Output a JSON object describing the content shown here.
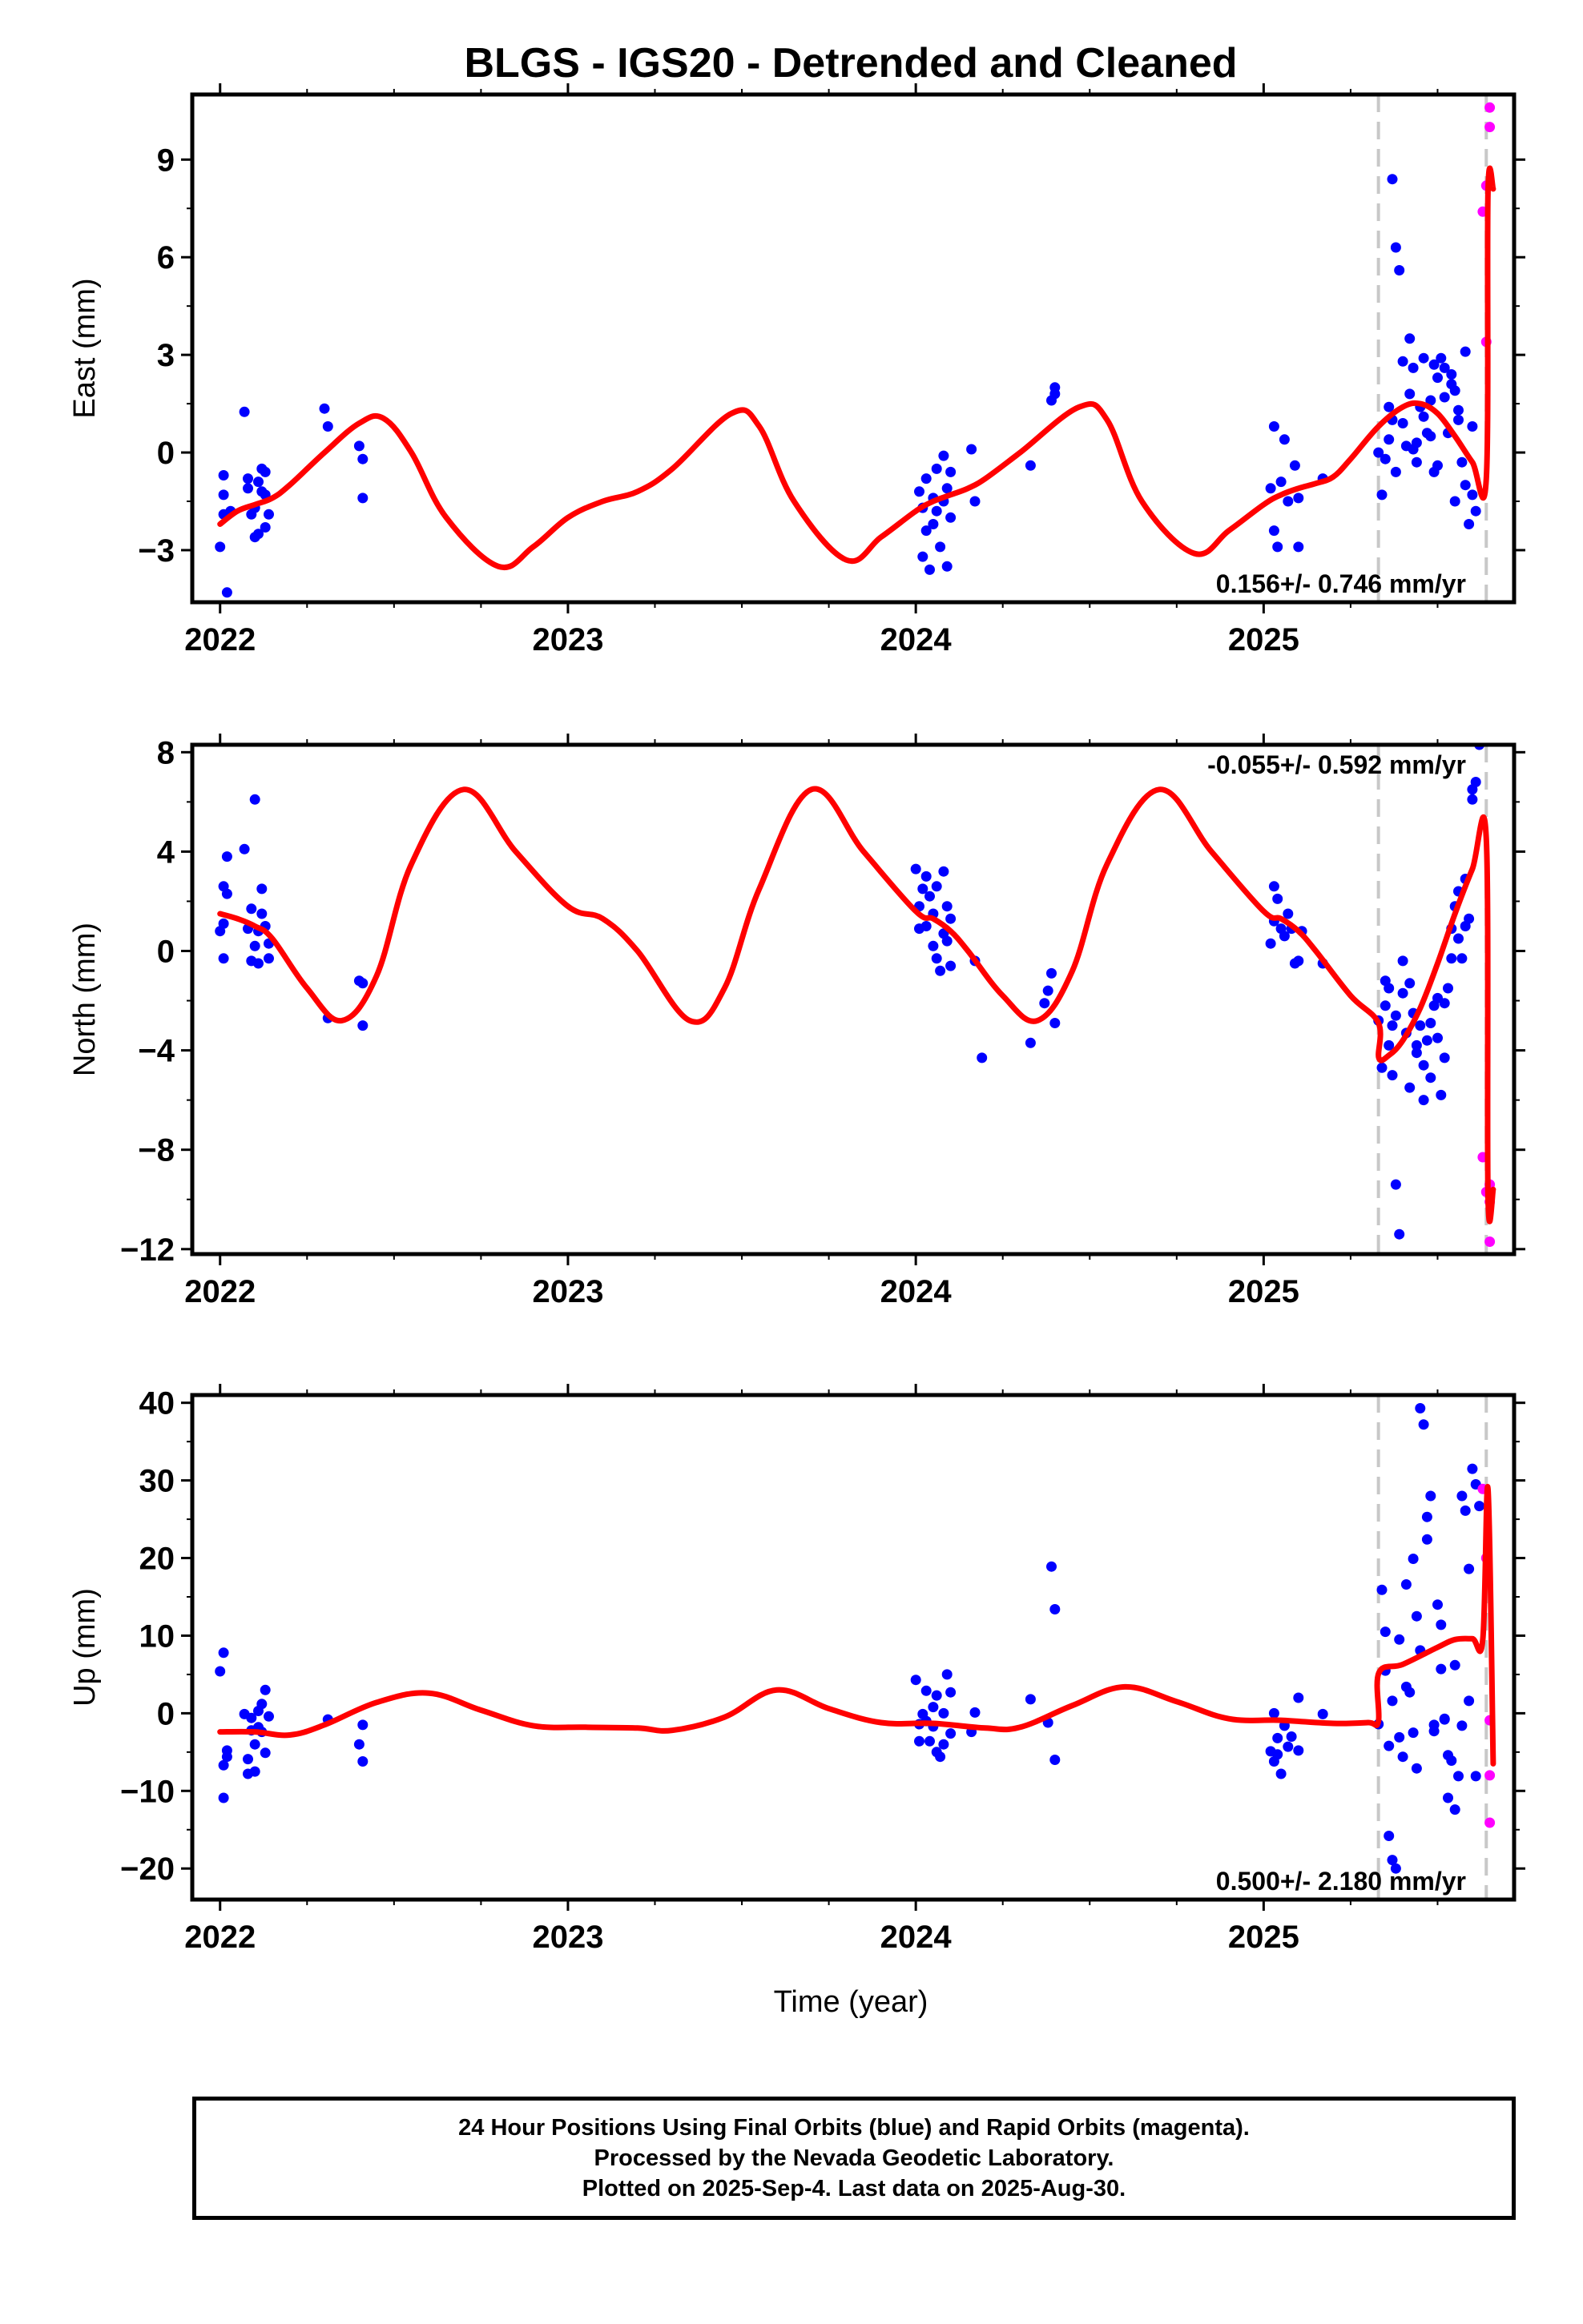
{
  "title": "BLGS - IGS20 - Detrended and Cleaned",
  "xlabel": "Time (year)",
  "footer": [
    "24 Hour Positions Using Final Orbits (blue) and Rapid Orbits (magenta).",
    "Processed by the Nevada Geodetic Laboratory.",
    "Plotted on 2025-Sep-4. Last data on 2025-Aug-30."
  ],
  "colors": {
    "final": "#0000ff",
    "rapid": "#ff00ff",
    "model": "#ff0000",
    "event_line": "#c8c8c8"
  },
  "chart_data": [
    {
      "type": "scatter",
      "component": "east",
      "ylabel": "East (mm)",
      "rate_text": "0.156+/- 0.746 mm/yr",
      "xlim": [
        2021.92,
        2025.72
      ],
      "ylim": [
        -4.6,
        11
      ],
      "yticks": [
        -3,
        0,
        3,
        6,
        9
      ],
      "xticks": [
        2022,
        2023,
        2024,
        2025
      ],
      "event_lines": [
        2025.33,
        2025.64
      ],
      "final": {
        "x": [
          2022.0,
          2022.01,
          2022.01,
          2022.01,
          2022.02,
          2022.03,
          2022.07,
          2022.08,
          2022.08,
          2022.09,
          2022.1,
          2022.1,
          2022.11,
          2022.11,
          2022.12,
          2022.12,
          2022.13,
          2022.13,
          2022.13,
          2022.14,
          2022.3,
          2022.31,
          2022.4,
          2022.41,
          2022.41,
          2024.01,
          2024.02,
          2024.02,
          2024.03,
          2024.03,
          2024.04,
          2024.05,
          2024.05,
          2024.06,
          2024.06,
          2024.07,
          2024.08,
          2024.08,
          2024.09,
          2024.09,
          2024.1,
          2024.1,
          2024.16,
          2024.17,
          2024.33,
          2024.39,
          2024.4,
          2024.4,
          2025.02,
          2025.03,
          2025.03,
          2025.04,
          2025.05,
          2025.06,
          2025.07,
          2025.09,
          2025.1,
          2025.1,
          2025.17,
          2025.33,
          2025.34,
          2025.35,
          2025.36,
          2025.37,
          2025.38,
          2025.39,
          2025.4,
          2025.41,
          2025.42,
          2025.43,
          2025.44,
          2025.45,
          2025.46,
          2025.47,
          2025.48,
          2025.49,
          2025.5,
          2025.51,
          2025.52,
          2025.53,
          2025.54,
          2025.55,
          2025.56,
          2025.57,
          2025.58,
          2025.59,
          2025.6,
          2025.61,
          2025.36,
          2025.38,
          2025.4,
          2025.42,
          2025.44,
          2025.46,
          2025.48,
          2025.5,
          2025.52,
          2025.54,
          2025.56,
          2025.58,
          2025.6,
          2025.37,
          2025.43,
          2025.49,
          2025.55
        ],
        "y": [
          -2.9,
          -1.9,
          -1.3,
          -0.7,
          -4.3,
          -1.8,
          1.25,
          -1.1,
          -0.8,
          -1.9,
          -2.6,
          -1.7,
          -2.5,
          -0.9,
          -1.2,
          -0.5,
          -2.3,
          -1.3,
          -0.6,
          -1.9,
          1.35,
          0.8,
          0.2,
          -0.2,
          -1.4,
          -1.2,
          -3.2,
          -1.7,
          -0.8,
          -2.4,
          -3.6,
          -2.2,
          -1.4,
          -0.5,
          -1.8,
          -2.9,
          -0.1,
          -1.5,
          -3.5,
          -1.1,
          -2.0,
          -0.6,
          0.1,
          -1.5,
          -0.4,
          1.6,
          2.0,
          1.8,
          -1.1,
          -2.4,
          0.8,
          -2.9,
          -0.9,
          0.4,
          -1.5,
          -0.4,
          -2.9,
          -1.4,
          -0.8,
          0.0,
          -1.3,
          -0.2,
          1.4,
          8.4,
          6.3,
          5.6,
          2.8,
          0.2,
          3.5,
          2.6,
          0.3,
          1.4,
          2.9,
          0.6,
          1.6,
          2.7,
          2.3,
          2.9,
          2.6,
          0.6,
          2.1,
          1.9,
          1.3,
          -0.3,
          -1.0,
          -2.2,
          -1.3,
          -1.8,
          0.4,
          -0.6,
          0.9,
          1.8,
          -0.3,
          1.1,
          0.5,
          -0.4,
          1.7,
          2.4,
          1.0,
          3.1,
          0.8,
          1.0,
          0.1,
          -0.6,
          -1.5
        ],
        "color": "#0000ff"
      },
      "rapid": {
        "x": [
          2025.63,
          2025.64,
          2025.64,
          2025.65,
          2025.65
        ],
        "y": [
          7.4,
          3.4,
          8.2,
          10.6,
          10.0
        ],
        "color": "#ff00ff"
      },
      "model_anchor": {
        "x": [
          2022.0,
          2022.05,
          2022.1,
          2022.15,
          2022.2,
          2022.3,
          2022.4,
          2022.47,
          2022.55,
          2022.65,
          2022.8,
          2022.9,
          2023.0,
          2023.1,
          2023.2,
          2023.3,
          2023.47,
          2023.55,
          2023.65,
          2023.8,
          2023.9,
          2024.0,
          2024.05,
          2024.1,
          2024.15,
          2024.2,
          2024.3,
          2024.47,
          2024.55,
          2024.65,
          2024.8,
          2024.9,
          2025.0,
          2025.05,
          2025.1,
          2025.15,
          2025.2,
          2025.25,
          2025.33,
          2025.4,
          2025.45,
          2025.5,
          2025.55,
          2025.6,
          2025.64,
          2025.645,
          2025.66
        ],
        "y": [
          -2.2,
          -1.8,
          -1.6,
          -1.4,
          -1.0,
          0.0,
          0.9,
          1.05,
          0.0,
          -2.0,
          -3.5,
          -2.9,
          -2.0,
          -1.5,
          -1.2,
          -0.5,
          1.2,
          0.8,
          -1.5,
          -3.3,
          -2.6,
          -1.8,
          -1.5,
          -1.3,
          -1.1,
          -0.8,
          0.0,
          1.4,
          1.0,
          -1.5,
          -3.1,
          -2.4,
          -1.6,
          -1.3,
          -1.1,
          -0.95,
          -0.75,
          -0.2,
          0.8,
          1.4,
          1.5,
          1.2,
          0.5,
          -0.3,
          -0.8,
          8.0,
          8.1
        ],
        "color": "#ff0000"
      }
    },
    {
      "type": "scatter",
      "component": "north",
      "ylabel": "North (mm)",
      "rate_text": "-0.055+/- 0.592 mm/yr",
      "xlim": [
        2021.92,
        2025.72
      ],
      "ylim": [
        -12.2,
        8.3
      ],
      "yticks": [
        -12,
        -8,
        -4,
        0,
        4,
        8
      ],
      "xticks": [
        2022,
        2023,
        2024,
        2025
      ],
      "event_lines": [
        2025.33,
        2025.64
      ],
      "final": {
        "x": [
          2022.0,
          2022.01,
          2022.01,
          2022.01,
          2022.02,
          2022.02,
          2022.07,
          2022.08,
          2022.09,
          2022.09,
          2022.1,
          2022.1,
          2022.11,
          2022.11,
          2022.12,
          2022.12,
          2022.13,
          2022.14,
          2022.14,
          2022.31,
          2022.4,
          2022.41,
          2022.41,
          2024.0,
          2024.01,
          2024.01,
          2024.02,
          2024.03,
          2024.03,
          2024.04,
          2024.05,
          2024.05,
          2024.06,
          2024.06,
          2024.07,
          2024.08,
          2024.08,
          2024.09,
          2024.09,
          2024.1,
          2024.1,
          2024.17,
          2024.19,
          2024.33,
          2024.37,
          2024.38,
          2024.39,
          2024.4,
          2025.02,
          2025.03,
          2025.03,
          2025.04,
          2025.05,
          2025.06,
          2025.07,
          2025.08,
          2025.09,
          2025.1,
          2025.11,
          2025.17,
          2025.33,
          2025.34,
          2025.35,
          2025.36,
          2025.37,
          2025.38,
          2025.39,
          2025.4,
          2025.41,
          2025.42,
          2025.43,
          2025.44,
          2025.45,
          2025.46,
          2025.47,
          2025.48,
          2025.49,
          2025.5,
          2025.51,
          2025.52,
          2025.53,
          2025.54,
          2025.55,
          2025.56,
          2025.57,
          2025.58,
          2025.59,
          2025.6,
          2025.61,
          2025.35,
          2025.36,
          2025.37,
          2025.38,
          2025.4,
          2025.42,
          2025.44,
          2025.46,
          2025.48,
          2025.5,
          2025.52,
          2025.54,
          2025.56,
          2025.58,
          2025.6,
          2025.62
        ],
        "y": [
          0.8,
          -0.3,
          1.1,
          2.6,
          3.8,
          2.3,
          4.1,
          0.9,
          -0.4,
          1.7,
          6.1,
          0.2,
          -0.5,
          0.8,
          2.5,
          1.5,
          1.0,
          0.3,
          -0.3,
          -2.7,
          -1.2,
          -1.3,
          -3.0,
          3.3,
          1.8,
          0.9,
          2.5,
          3.0,
          1.0,
          2.2,
          1.5,
          0.2,
          2.6,
          -0.3,
          -0.8,
          3.2,
          0.7,
          1.8,
          0.4,
          1.3,
          -0.6,
          -0.4,
          -4.3,
          -3.7,
          -2.1,
          -1.6,
          -0.9,
          -2.9,
          0.3,
          1.2,
          2.6,
          2.1,
          0.9,
          0.6,
          1.5,
          0.9,
          -0.5,
          -0.4,
          0.8,
          -0.5,
          -2.8,
          -4.7,
          -2.2,
          -3.8,
          -5.0,
          -9.4,
          -11.4,
          -1.7,
          -3.3,
          -5.5,
          -2.5,
          -4.1,
          -3.0,
          -6.0,
          -3.6,
          -5.1,
          -2.2,
          -3.5,
          -5.8,
          -4.3,
          -1.5,
          -0.3,
          1.8,
          0.5,
          -0.3,
          2.9,
          1.3,
          6.1,
          6.8,
          -1.2,
          -1.5,
          -3.0,
          -2.6,
          -0.4,
          -1.3,
          -3.8,
          -4.6,
          -2.9,
          -1.9,
          -2.1,
          0.9,
          2.4,
          1.0,
          6.5,
          8.3
        ],
        "color": "#0000ff"
      },
      "rapid": {
        "x": [
          2025.63,
          2025.64,
          2025.65,
          2025.65,
          2025.65
        ],
        "y": [
          -8.3,
          -9.7,
          -9.4,
          -10.1,
          -11.7
        ],
        "color": "#ff00ff"
      },
      "model_anchor": {
        "x": [
          2022.0,
          2022.05,
          2022.1,
          2022.15,
          2022.25,
          2022.35,
          2022.45,
          2022.55,
          2022.7,
          2022.85,
          2023.0,
          2023.1,
          2023.2,
          2023.35,
          2023.45,
          2023.55,
          2023.7,
          2023.85,
          2024.0,
          2024.05,
          2024.1,
          2024.15,
          2024.25,
          2024.35,
          2024.45,
          2024.55,
          2024.7,
          2024.85,
          2025.0,
          2025.05,
          2025.1,
          2025.15,
          2025.25,
          2025.33,
          2025.331,
          2025.36,
          2025.4,
          2025.45,
          2025.5,
          2025.55,
          2025.6,
          2025.64,
          2025.645,
          2025.66
        ],
        "y": [
          1.5,
          1.3,
          1.0,
          0.5,
          -1.5,
          -2.8,
          -1.0,
          3.5,
          6.5,
          4.0,
          1.8,
          1.3,
          0.0,
          -2.8,
          -1.5,
          2.5,
          6.5,
          4.0,
          1.6,
          1.3,
          0.8,
          0.0,
          -1.8,
          -2.8,
          -0.8,
          3.5,
          6.5,
          4.0,
          1.6,
          1.3,
          0.8,
          0.0,
          -1.8,
          -2.9,
          -4.3,
          -4.2,
          -3.6,
          -2.3,
          -0.5,
          1.5,
          3.3,
          4.5,
          -9.8,
          -9.6
        ],
        "color": "#ff0000"
      }
    },
    {
      "type": "scatter",
      "component": "up",
      "ylabel": "Up (mm)",
      "rate_text": "0.500+/- 2.180 mm/yr",
      "xlim": [
        2021.92,
        2025.72
      ],
      "ylim": [
        -24,
        41
      ],
      "yticks": [
        -20,
        -10,
        0,
        10,
        20,
        30,
        40
      ],
      "xticks": [
        2022,
        2023,
        2024,
        2025
      ],
      "xlabel": "Time (year)",
      "event_lines": [
        2025.33,
        2025.64
      ],
      "final": {
        "x": [
          2022.0,
          2022.01,
          2022.01,
          2022.01,
          2022.02,
          2022.02,
          2022.07,
          2022.08,
          2022.08,
          2022.09,
          2022.09,
          2022.1,
          2022.1,
          2022.11,
          2022.11,
          2022.12,
          2022.12,
          2022.13,
          2022.13,
          2022.14,
          2022.31,
          2022.4,
          2022.41,
          2022.41,
          2024.0,
          2024.01,
          2024.01,
          2024.02,
          2024.03,
          2024.03,
          2024.04,
          2024.05,
          2024.05,
          2024.06,
          2024.06,
          2024.07,
          2024.08,
          2024.08,
          2024.09,
          2024.1,
          2024.1,
          2024.16,
          2024.17,
          2024.33,
          2024.38,
          2024.39,
          2024.4,
          2024.4,
          2025.02,
          2025.03,
          2025.03,
          2025.04,
          2025.04,
          2025.05,
          2025.06,
          2025.07,
          2025.08,
          2025.1,
          2025.1,
          2025.17,
          2025.33,
          2025.34,
          2025.35,
          2025.36,
          2025.37,
          2025.38,
          2025.39,
          2025.4,
          2025.41,
          2025.42,
          2025.43,
          2025.44,
          2025.45,
          2025.46,
          2025.47,
          2025.48,
          2025.49,
          2025.5,
          2025.51,
          2025.52,
          2025.53,
          2025.54,
          2025.55,
          2025.56,
          2025.57,
          2025.58,
          2025.59,
          2025.6,
          2025.61,
          2025.35,
          2025.37,
          2025.39,
          2025.41,
          2025.43,
          2025.45,
          2025.47,
          2025.49,
          2025.51,
          2025.53,
          2025.55,
          2025.57,
          2025.59,
          2025.61,
          2025.62,
          2025.36,
          2025.44,
          2025.52
        ],
        "y": [
          5.4,
          7.8,
          -6.7,
          -10.9,
          -4.8,
          -5.6,
          -0.1,
          -5.9,
          -7.8,
          -2.2,
          -0.6,
          -7.5,
          -4.0,
          0.3,
          -1.8,
          -2.4,
          1.2,
          -5.1,
          3.0,
          -0.4,
          -0.8,
          -4.0,
          -6.2,
          -1.5,
          4.3,
          -3.6,
          -1.4,
          -0.1,
          2.9,
          -1.0,
          -3.6,
          0.8,
          -1.7,
          -5.0,
          2.3,
          -5.6,
          -4.0,
          0.0,
          5.0,
          -2.6,
          2.7,
          -2.4,
          0.1,
          1.8,
          -1.2,
          18.9,
          13.4,
          -6.0,
          -4.9,
          -6.2,
          0.0,
          -3.2,
          -5.3,
          -7.8,
          -1.6,
          -4.3,
          -3.0,
          2.0,
          -4.8,
          -0.1,
          -1.4,
          15.9,
          5.5,
          -15.8,
          -18.9,
          -20.0,
          9.5,
          -5.6,
          16.6,
          2.7,
          19.9,
          -7.1,
          39.3,
          37.2,
          25.3,
          28.0,
          -2.3,
          14.0,
          5.7,
          -0.8,
          -10.9,
          -6.1,
          -12.4,
          -8.1,
          28.0,
          26.1,
          18.6,
          31.5,
          -8.1,
          10.5,
          1.6,
          -3.1,
          3.4,
          -2.5,
          8.1,
          22.4,
          -1.5,
          11.4,
          -5.4,
          6.2,
          -1.6,
          1.6,
          29.5,
          26.7,
          -4.2,
          12.5,
          -0.7
        ],
        "color": "#0000ff"
      },
      "rapid": {
        "x": [
          2025.63,
          2025.64,
          2025.65,
          2025.65,
          2025.65
        ],
        "y": [
          28.9,
          20.0,
          -0.9,
          -8.0,
          -14.1
        ],
        "color": "#ff00ff"
      },
      "model_anchor": {
        "x": [
          2022.0,
          2022.1,
          2022.2,
          2022.3,
          2022.45,
          2022.6,
          2022.75,
          2022.9,
          2023.05,
          2023.2,
          2023.3,
          2023.45,
          2023.6,
          2023.75,
          2023.9,
          2024.05,
          2024.2,
          2024.3,
          2024.45,
          2024.6,
          2024.75,
          2024.9,
          2025.05,
          2025.2,
          2025.3,
          2025.33,
          2025.331,
          2025.4,
          2025.5,
          2025.55,
          2025.6,
          2025.63,
          2025.645,
          2025.66
        ],
        "y": [
          -2.4,
          -2.4,
          -2.8,
          -1.5,
          1.4,
          2.6,
          0.4,
          -1.6,
          -1.8,
          -1.9,
          -2.2,
          -0.5,
          3.0,
          0.6,
          -1.2,
          -1.3,
          -1.9,
          -1.8,
          1.0,
          3.4,
          1.5,
          -0.7,
          -0.9,
          -1.3,
          -1.2,
          -1.0,
          5.2,
          6.3,
          8.5,
          9.5,
          9.6,
          9.5,
          28.9,
          -6.5
        ],
        "color": "#ff0000"
      }
    }
  ]
}
